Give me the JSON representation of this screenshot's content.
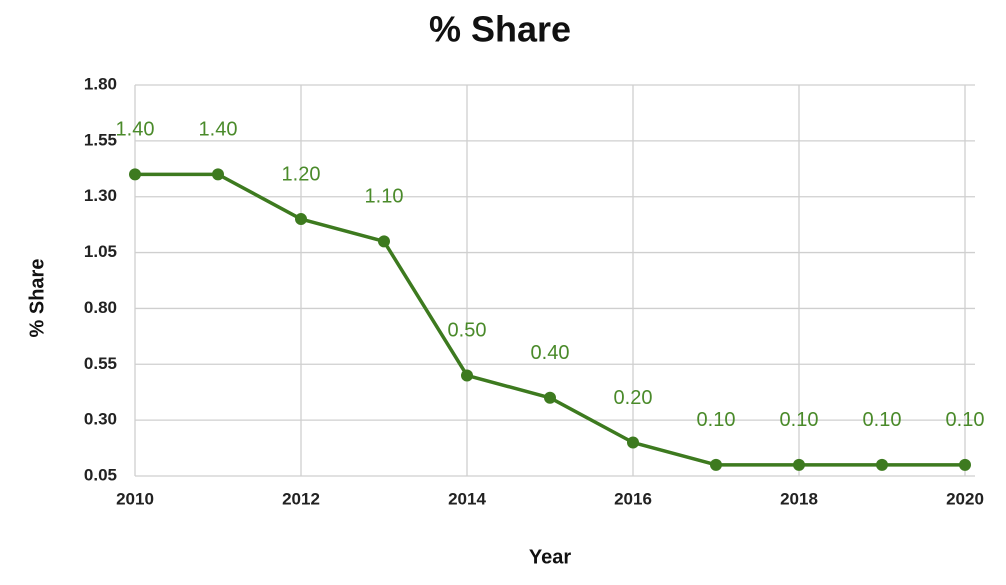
{
  "chart_data": {
    "type": "line",
    "title": "% Share",
    "x_label": "Year",
    "y_label": "% Share",
    "x": [
      2010,
      2011,
      2012,
      2013,
      2014,
      2015,
      2016,
      2017,
      2018,
      2019,
      2020
    ],
    "series": [
      {
        "name": "% Share",
        "color": "#3d7a1f",
        "values": [
          1.4,
          1.4,
          1.2,
          1.1,
          0.5,
          0.4,
          0.2,
          0.1,
          0.1,
          0.1,
          0.1
        ],
        "value_labels": [
          "1.40",
          "1.40",
          "1.20",
          "1.10",
          "0.50",
          "0.40",
          "0.20",
          "0.10",
          "0.10",
          "0.10",
          "0.10"
        ]
      }
    ],
    "xlim": [
      2010,
      2020
    ],
    "xticks": [
      2010,
      2012,
      2014,
      2016,
      2018,
      2020
    ],
    "ylim": [
      0.05,
      1.8
    ],
    "yticks": [
      0.05,
      {
        "value": 0.3,
        "label": "0.30"
      },
      0.55,
      {
        "value": 0.8,
        "label": "0.80"
      },
      1.05,
      {
        "value": 1.3,
        "label": "1.30"
      },
      1.55,
      {
        "value": 1.8,
        "label": "1.80"
      }
    ],
    "grid": true
  }
}
